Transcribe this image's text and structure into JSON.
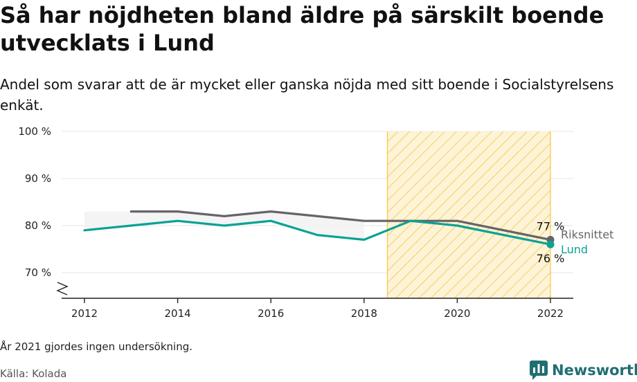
{
  "header": {
    "title": "Så har nöjdheten bland äldre på särskilt boende utvecklats i Lund",
    "subtitle": "Andel som svarar att de är mycket eller ganska nöjda med sitt boende i Socialstyrelsens enkät."
  },
  "footer": {
    "note": "År 2021 gjordes ingen undersökning.",
    "source": "Källa: Kolada",
    "brand": "Newsworthy"
  },
  "colors": {
    "riksnittet": "#666369",
    "lund": "#0aa294",
    "highlight_stroke": "#f5c542",
    "highlight_fill": "#fdf3d6"
  },
  "chart_data": {
    "type": "line",
    "xlim": [
      2011.5,
      2022.5
    ],
    "ylim": [
      65,
      100
    ],
    "x_ticks": [
      2012,
      2014,
      2016,
      2018,
      2020,
      2022
    ],
    "x_tick_labels": [
      "2012",
      "2014",
      "2016",
      "2018",
      "2020",
      "2022"
    ],
    "y_ticks": [
      70,
      80,
      90,
      100
    ],
    "y_tick_labels": [
      "70 %",
      "80 %",
      "90 %",
      "100 %"
    ],
    "highlight_range": [
      2018.5,
      2022
    ],
    "series": [
      {
        "name": "Riksnittet",
        "key": "riksnittet",
        "x": [
          2013,
          2014,
          2015,
          2016,
          2017,
          2018,
          2019,
          2020,
          2022
        ],
        "values": [
          83,
          83,
          82,
          83,
          82,
          81,
          81,
          81,
          77
        ],
        "end_label": "77 %"
      },
      {
        "name": "Lund",
        "key": "lund",
        "x": [
          2012,
          2013,
          2014,
          2015,
          2016,
          2017,
          2018,
          2019,
          2020,
          2022
        ],
        "values": [
          79,
          80,
          81,
          80,
          81,
          78,
          77,
          81,
          80,
          76
        ],
        "end_label": "76 %"
      }
    ]
  }
}
